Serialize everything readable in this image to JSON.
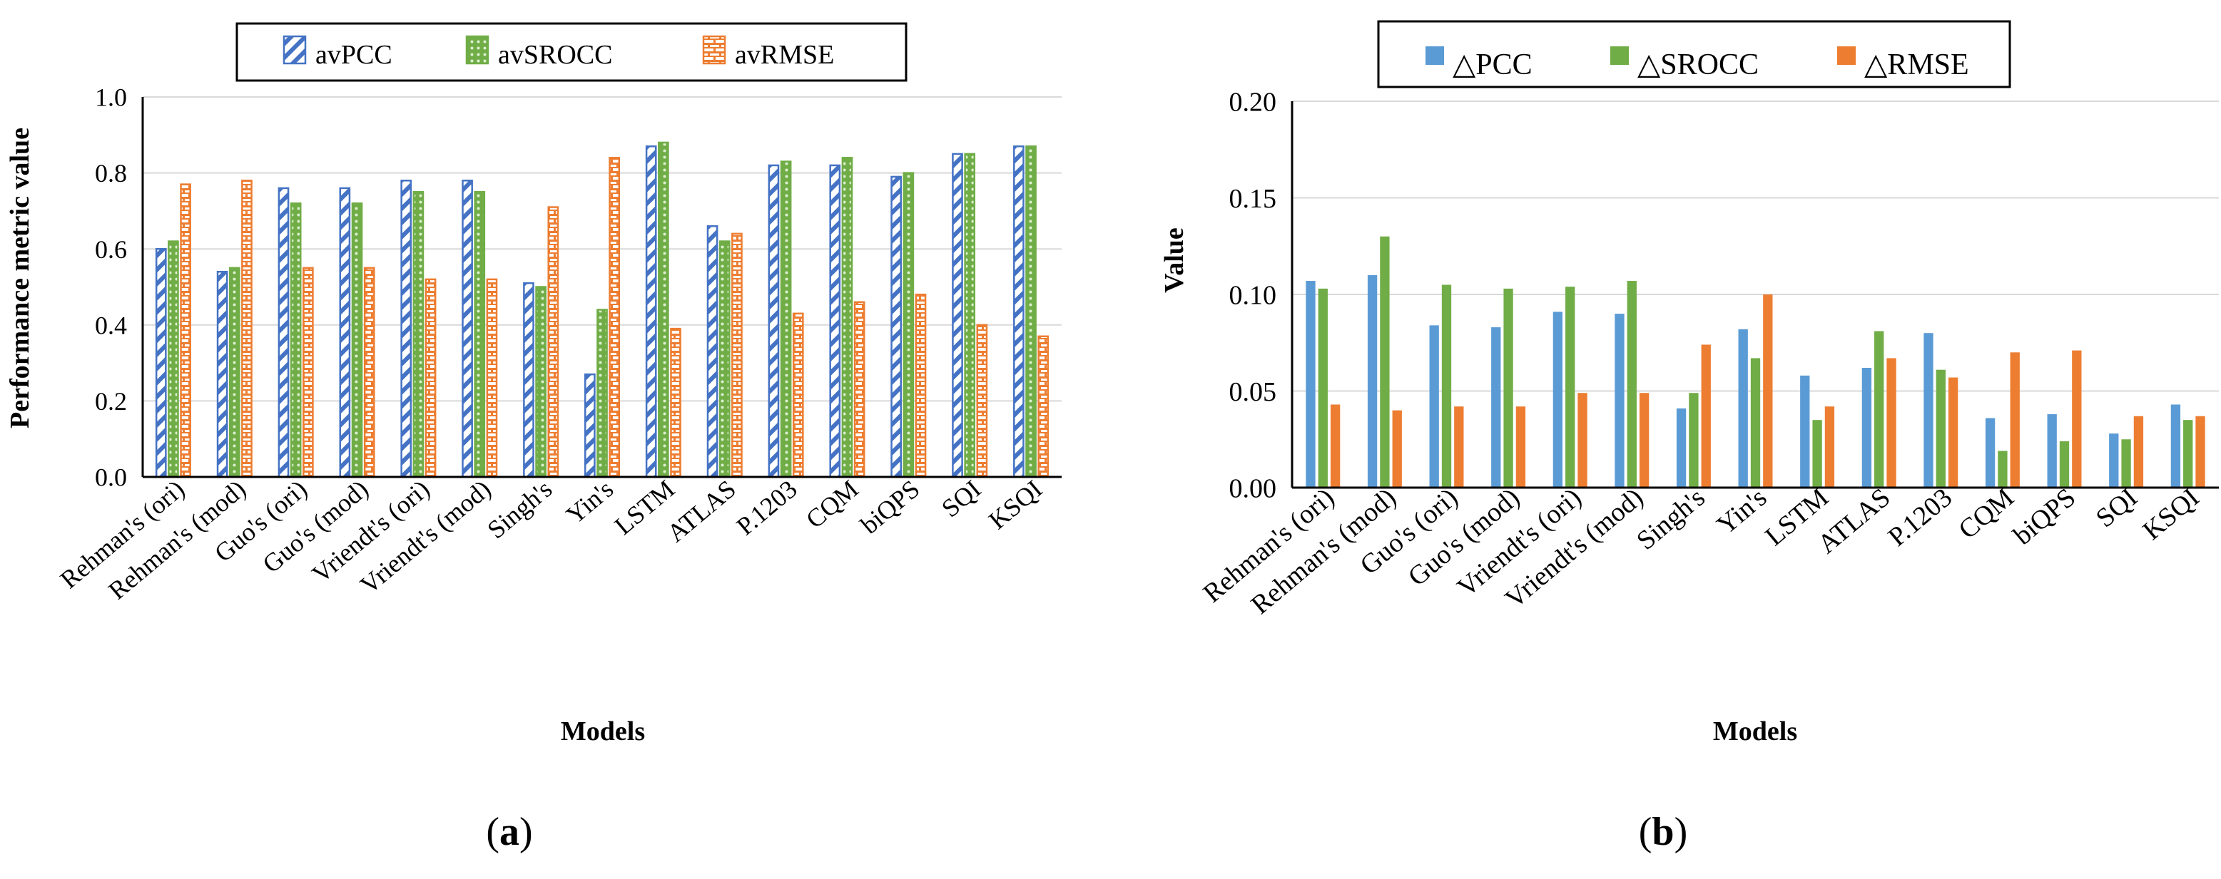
{
  "figure": {
    "caption_a": "a",
    "caption_b": "b"
  },
  "chart_data": [
    {
      "id": "a",
      "type": "bar",
      "title": "",
      "xlabel": "Models",
      "ylabel": "Performance metric value",
      "ylim": [
        0,
        1.0
      ],
      "yticks": [
        0.0,
        0.2,
        0.4,
        0.6,
        0.8,
        1.0
      ],
      "ytick_labels": [
        "0.0",
        "0.2",
        "0.4",
        "0.6",
        "0.8",
        "1.0"
      ],
      "grid": true,
      "legend_position": "top-center",
      "categories": [
        "Rehman's (ori)",
        "Rehman's (mod)",
        "Guo's (ori)",
        "Guo's (mod)",
        "Vriendt's (ori)",
        "Vriendt's (mod)",
        "Singh's",
        "Yin's",
        "LSTM",
        "ATLAS",
        "P.1203",
        "CQM",
        "biQPS",
        "SQI",
        "KSQI"
      ],
      "series": [
        {
          "name": "avPCC",
          "pattern": "diagonal",
          "color": "#4472C4",
          "values": [
            0.6,
            0.54,
            0.76,
            0.76,
            0.78,
            0.78,
            0.51,
            0.27,
            0.87,
            0.66,
            0.82,
            0.82,
            0.79,
            0.85,
            0.87
          ]
        },
        {
          "name": "avSROCC",
          "pattern": "dots",
          "color": "#70AD47",
          "values": [
            0.62,
            0.55,
            0.72,
            0.72,
            0.75,
            0.75,
            0.5,
            0.44,
            0.88,
            0.62,
            0.83,
            0.84,
            0.8,
            0.85,
            0.87
          ]
        },
        {
          "name": "avRMSE",
          "pattern": "bricks",
          "color": "#ED7D31",
          "values": [
            0.77,
            0.78,
            0.55,
            0.55,
            0.52,
            0.52,
            0.71,
            0.84,
            0.39,
            0.64,
            0.43,
            0.46,
            0.48,
            0.4,
            0.37
          ]
        }
      ]
    },
    {
      "id": "b",
      "type": "bar",
      "title": "",
      "xlabel": "Models",
      "ylabel": "Value",
      "ylim": [
        0,
        0.2
      ],
      "yticks": [
        0.0,
        0.05,
        0.1,
        0.15,
        0.2
      ],
      "ytick_labels": [
        "0.00",
        "0.05",
        "0.10",
        "0.15",
        "0.20"
      ],
      "grid": true,
      "legend_position": "top-center",
      "categories": [
        "Rehman's (ori)",
        "Rehman's (mod)",
        "Guo's (ori)",
        "Guo's (mod)",
        "Vriendt's (ori)",
        "Vriendt's (mod)",
        "Singh's",
        "Yin's",
        "LSTM",
        "ATLAS",
        "P.1203",
        "CQM",
        "biQPS",
        "SQI",
        "KSQI"
      ],
      "series": [
        {
          "name": "△PCC",
          "pattern": "solid",
          "color": "#5B9BD5",
          "values": [
            0.107,
            0.11,
            0.084,
            0.083,
            0.091,
            0.09,
            0.041,
            0.082,
            0.058,
            0.062,
            0.08,
            0.036,
            0.038,
            0.028,
            0.043
          ]
        },
        {
          "name": "△SROCC",
          "pattern": "solid",
          "color": "#70AD47",
          "values": [
            0.103,
            0.13,
            0.105,
            0.103,
            0.104,
            0.107,
            0.049,
            0.067,
            0.035,
            0.081,
            0.061,
            0.019,
            0.024,
            0.025,
            0.035
          ]
        },
        {
          "name": "△RMSE",
          "pattern": "solid",
          "color": "#ED7D31",
          "values": [
            0.043,
            0.04,
            0.042,
            0.042,
            0.049,
            0.049,
            0.074,
            0.1,
            0.042,
            0.067,
            0.057,
            0.07,
            0.071,
            0.037,
            0.037
          ]
        }
      ]
    }
  ]
}
